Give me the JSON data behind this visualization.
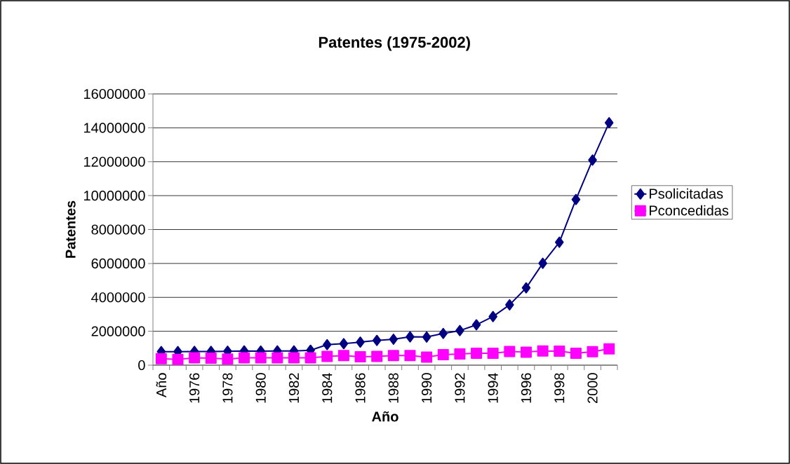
{
  "chart_data": {
    "type": "line",
    "title": "Patentes (1975-2002)",
    "xlabel": "Año",
    "ylabel": "Patentes",
    "categories": [
      "Año",
      null,
      "1976",
      null,
      "1978",
      null,
      "1980",
      null,
      "1982",
      null,
      "1984",
      null,
      "1986",
      null,
      "1988",
      null,
      "1990",
      null,
      "1992",
      null,
      "1994",
      null,
      "1996",
      null,
      "1998",
      null,
      "2000",
      null
    ],
    "series": [
      {
        "name": "Psolicitadas",
        "color": "#000080",
        "marker": "diamond",
        "values": [
          800000,
          800000,
          810000,
          810000,
          820000,
          840000,
          830000,
          840000,
          840000,
          880000,
          1210000,
          1270000,
          1360000,
          1460000,
          1530000,
          1670000,
          1660000,
          1870000,
          2040000,
          2380000,
          2870000,
          3560000,
          4560000,
          6010000,
          7250000,
          9770000,
          12100000,
          14300000
        ]
      },
      {
        "name": "Pconcedidas",
        "color": "#ff00ff",
        "marker": "square",
        "values": [
          380000,
          340000,
          430000,
          410000,
          360000,
          430000,
          430000,
          430000,
          430000,
          430000,
          520000,
          570000,
          500000,
          520000,
          570000,
          570000,
          480000,
          620000,
          660000,
          700000,
          700000,
          810000,
          770000,
          840000,
          830000,
          700000,
          800000,
          960000
        ]
      }
    ],
    "ylim": [
      0,
      16000000
    ],
    "yticks": [
      0,
      2000000,
      4000000,
      6000000,
      8000000,
      10000000,
      12000000,
      14000000,
      16000000
    ],
    "grid": "y",
    "legend": "right"
  }
}
